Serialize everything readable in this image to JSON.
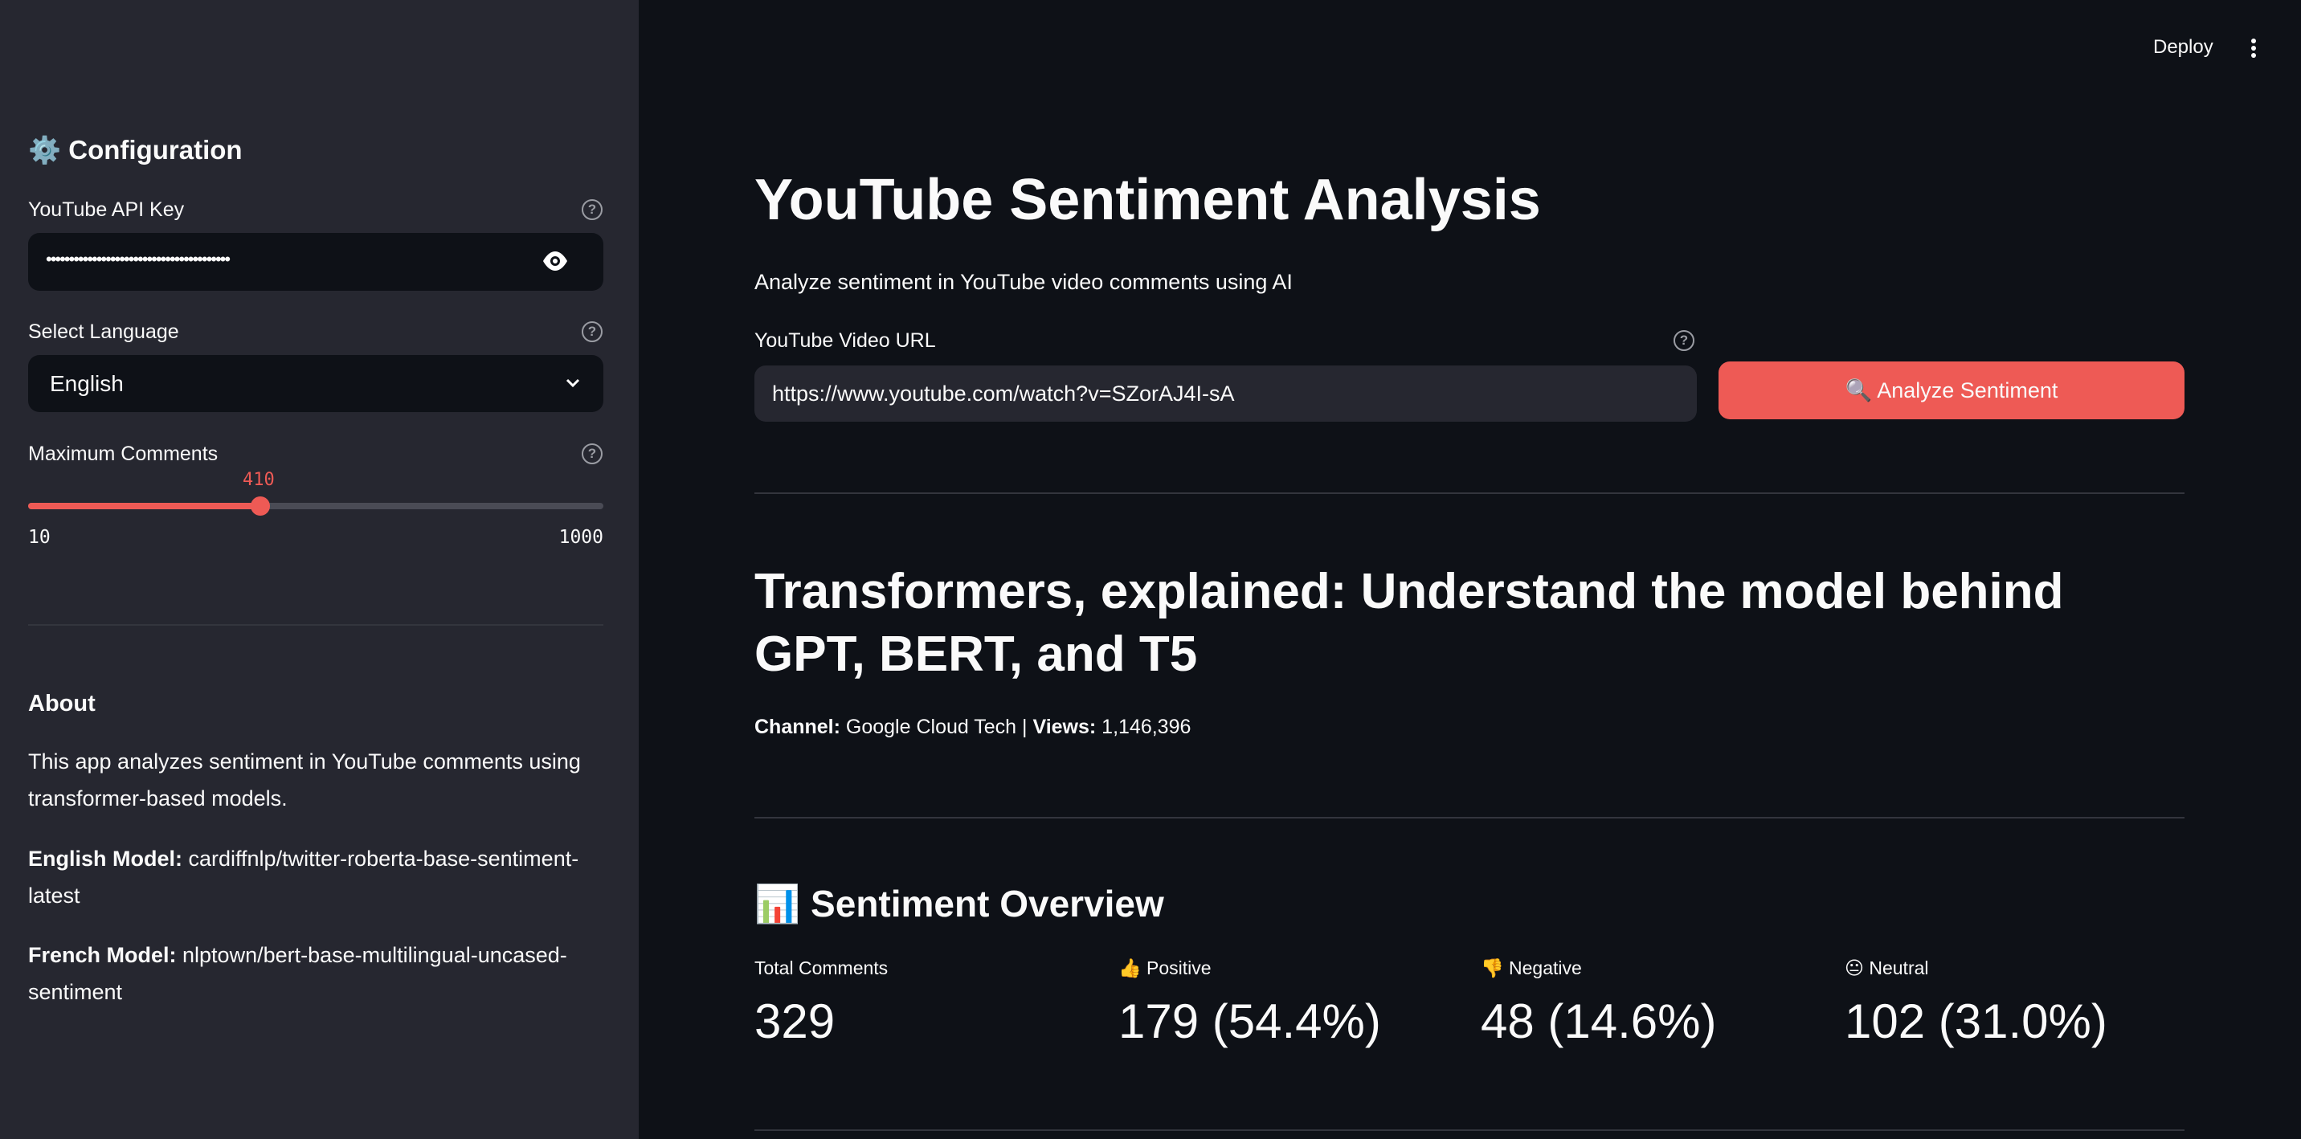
{
  "header": {
    "deploy_label": "Deploy",
    "menu_icon": "kebab-menu-icon"
  },
  "sidebar": {
    "title": "Configuration",
    "title_icon": "gear-icon",
    "api_key": {
      "label": "YouTube API Key",
      "value": "••••••••••••••••••••••••••••••••••••••••"
    },
    "language": {
      "label": "Select Language",
      "value": "English"
    },
    "max_comments": {
      "label": "Maximum Comments",
      "value": "410",
      "min": "10",
      "max": "1000",
      "fraction": 0.404
    },
    "about": {
      "heading": "About",
      "description": "This app analyzes sentiment in YouTube comments using transformer-based models.",
      "english_label": "English Model:",
      "english_value": " cardiffnlp/twitter-roberta-base-sentiment-latest",
      "french_label": "French Model:",
      "french_value": " nlptown/bert-base-multilingual-uncased-sentiment"
    }
  },
  "main": {
    "title": "YouTube Sentiment Analysis",
    "subtitle": "Analyze sentiment in YouTube video comments using AI",
    "url": {
      "label": "YouTube Video URL",
      "value": "https://www.youtube.com/watch?v=SZorAJ4I-sA"
    },
    "analyze_button": "🔍 Analyze Sentiment",
    "video_title": "Transformers, explained: Understand the model behind GPT, BERT, and T5",
    "channel_label": "Channel:",
    "channel_value": " Google Cloud Tech | ",
    "views_label": "Views:",
    "views_value": " 1,146,396",
    "overview_title": "📊 Sentiment Overview",
    "metrics": [
      {
        "label": "Total Comments",
        "value": "329"
      },
      {
        "label": "👍 Positive",
        "value": "179 (54.4%)"
      },
      {
        "label": "👎 Negative",
        "value": "48 (14.6%)"
      },
      {
        "label": "😐 Neutral",
        "value": "102 (31.0%)"
      }
    ]
  },
  "colors": {
    "accent": "#ee5a55",
    "sidebar_bg": "#262730",
    "main_bg": "#0e1117"
  }
}
